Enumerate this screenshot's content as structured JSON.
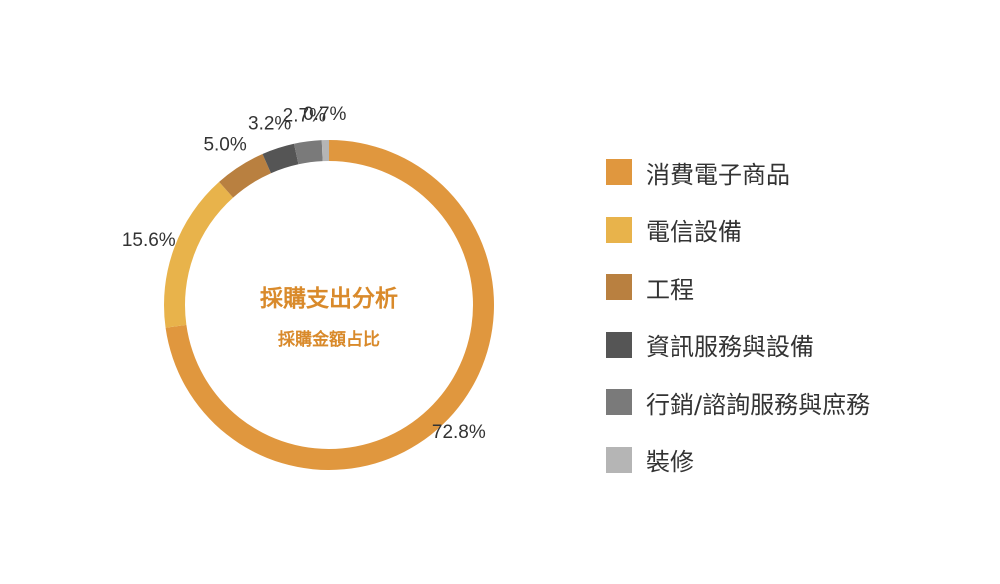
{
  "chart_data": {
    "type": "pie",
    "title": "採購支出分析",
    "subtitle": "採購金額占比",
    "slices": [
      {
        "label": "消費電子商品",
        "value": 72.8,
        "display": "72.8%",
        "color": "#e0973e"
      },
      {
        "label": "電信設備",
        "value": 15.6,
        "display": "15.6%",
        "color": "#e8b34b"
      },
      {
        "label": "工程",
        "value": 5.0,
        "display": "5.0%",
        "color": "#b98040"
      },
      {
        "label": "資訊服務與設備",
        "value": 3.2,
        "display": "3.2%",
        "color": "#555555"
      },
      {
        "label": "行銷/諮詢服務與庶務",
        "value": 2.7,
        "display": "2.7%",
        "color": "#7a7a7a"
      },
      {
        "label": "裝修",
        "value": 0.7,
        "display": "0.7%",
        "color": "#b5b5b5"
      }
    ],
    "start": "12 o'clock",
    "direction": "clockwise",
    "legend_position": "right"
  }
}
